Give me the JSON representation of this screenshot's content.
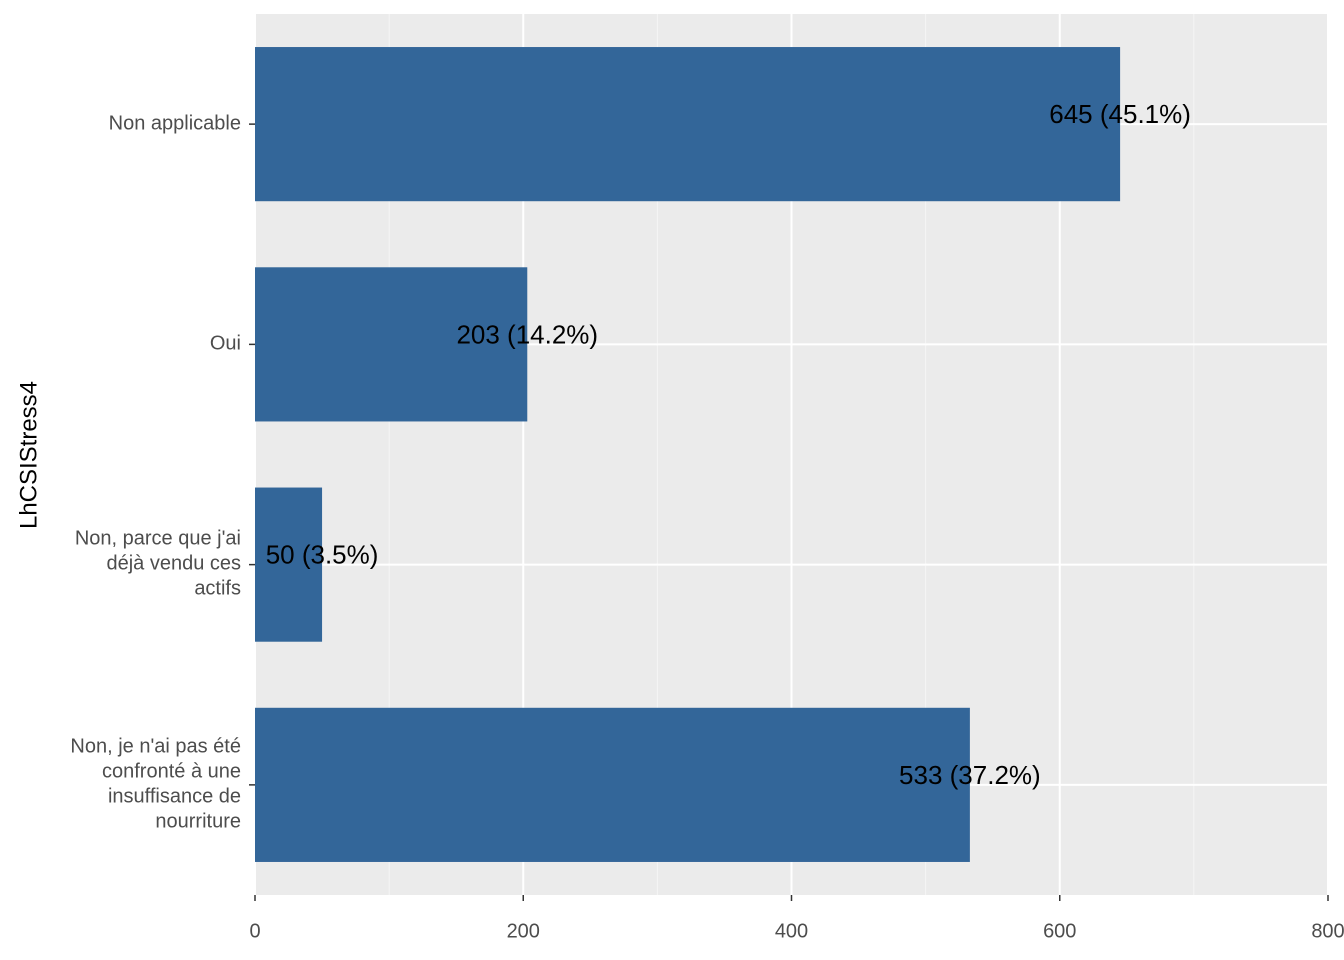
{
  "chart_data": {
    "type": "bar",
    "orientation": "horizontal",
    "y_label": "LhCSIStress4",
    "categories": [
      "Non applicable",
      "Oui",
      "Non, parce que j'ai\ndéjà vendu ces\nactifs",
      "Non, je n'ai pas été\nconfronté à une\ninsuffisance de\nnourriture"
    ],
    "values": [
      645,
      203,
      50,
      533
    ],
    "value_labels": [
      "645 (45.1%)",
      "203 (14.2%)",
      "50 (3.5%)",
      "533 (37.2%)"
    ],
    "color": "#336699",
    "xlim": [
      0,
      800
    ],
    "xticks": [
      0,
      200,
      400,
      600,
      800
    ],
    "xminorticks": [
      100,
      300,
      500,
      700
    ],
    "grid": true
  }
}
